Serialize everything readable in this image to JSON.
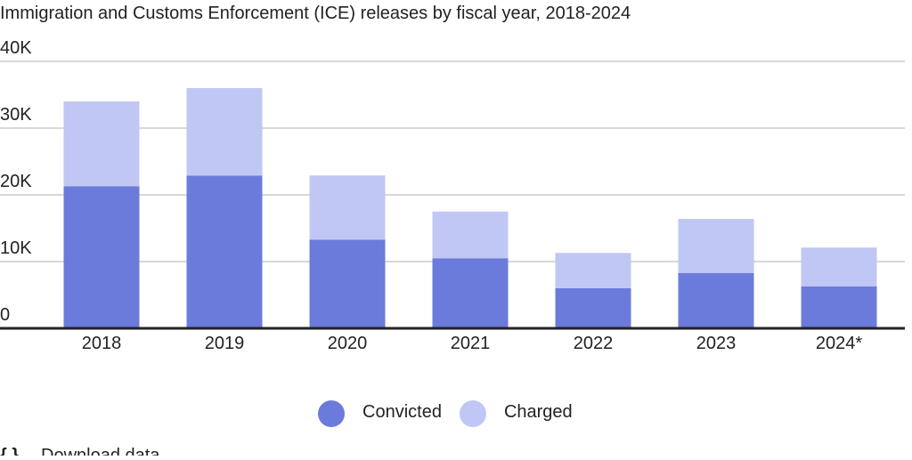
{
  "chart_data": {
    "type": "stacked_bar",
    "title": "Immigration and Customs Enforcement (ICE) releases by fiscal year, 2018-2024",
    "categories": [
      "2018",
      "2019",
      "2020",
      "2021",
      "2022",
      "2023",
      "2024*"
    ],
    "series": [
      {
        "name": "Convicted",
        "color": "#6b7bdb",
        "values": [
          21.3,
          22.9,
          13.3,
          10.5,
          6.0,
          8.3,
          6.3
        ]
      },
      {
        "name": "Charged",
        "color": "#c0c7f5",
        "values": [
          12.7,
          13.1,
          9.6,
          7.0,
          5.3,
          8.1,
          5.8
        ]
      }
    ],
    "ylim": [
      0,
      40
    ],
    "yticks": [
      0,
      {
        "value": 10,
        "label": "10K"
      },
      {
        "value": 20,
        "label": "20K"
      },
      {
        "value": 30,
        "label": "30K"
      },
      {
        "value": 40,
        "label": "40K"
      }
    ],
    "grid": true,
    "legend": "bottom"
  },
  "footer": {
    "link": "Download data"
  }
}
